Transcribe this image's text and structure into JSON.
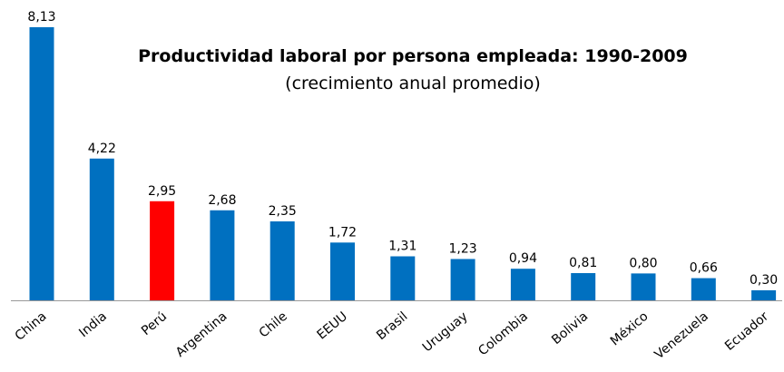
{
  "chart_data": {
    "type": "bar",
    "title": "Productividad laboral por persona empleada: 1990-2009",
    "subtitle": "(crecimiento anual promedio)",
    "categories": [
      "China",
      "India",
      "Perú",
      "Argentina",
      "Chile",
      "EEUU",
      "Brasil",
      "Uruguay",
      "Colombia",
      "Bolivia",
      "México",
      "Venezuela",
      "Ecuador"
    ],
    "values": [
      8.13,
      4.22,
      2.95,
      2.68,
      2.35,
      1.72,
      1.31,
      1.23,
      0.94,
      0.81,
      0.8,
      0.66,
      0.3
    ],
    "value_labels": [
      "8,13",
      "4,22",
      "2,95",
      "2,68",
      "2,35",
      "1,72",
      "1,31",
      "1,23",
      "0,94",
      "0,81",
      "0,80",
      "0,66",
      "0,30"
    ],
    "colors": [
      "#0070c0",
      "#0070c0",
      "#ff0000",
      "#0070c0",
      "#0070c0",
      "#0070c0",
      "#0070c0",
      "#0070c0",
      "#0070c0",
      "#0070c0",
      "#0070c0",
      "#0070c0",
      "#0070c0"
    ]
  }
}
